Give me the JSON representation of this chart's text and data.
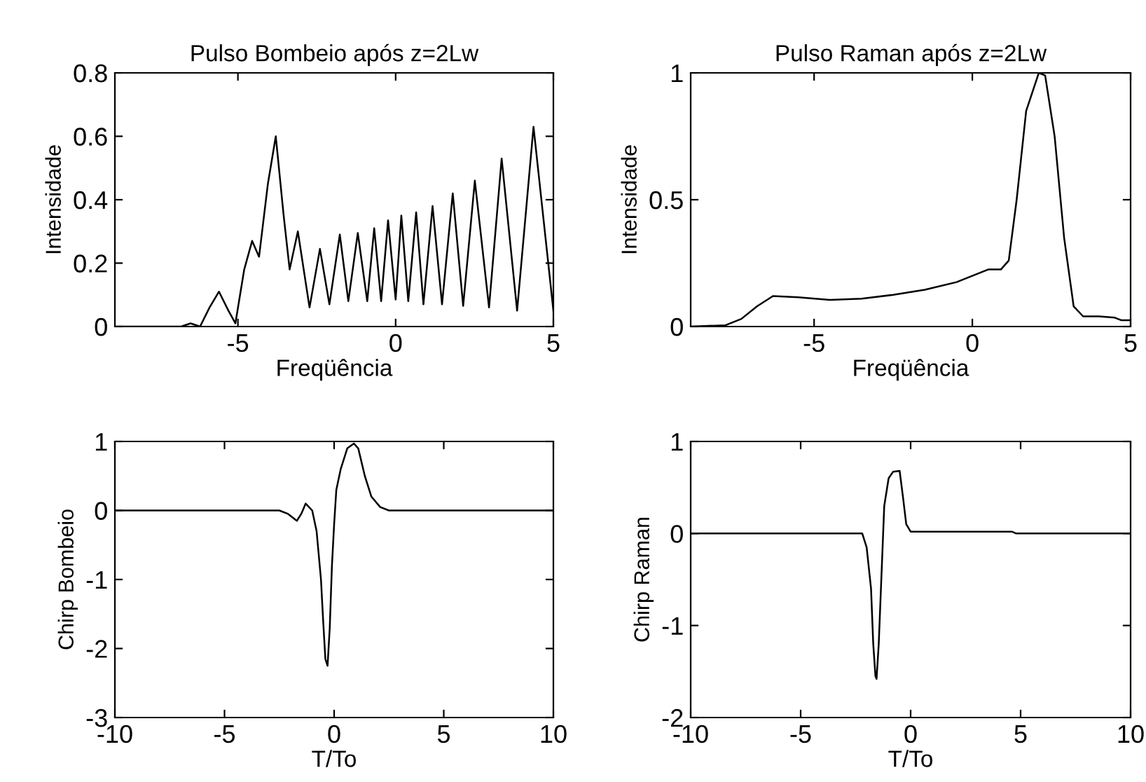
{
  "chart_data": [
    {
      "type": "line",
      "title": "Pulso Bombeio após z=2Lw",
      "xlabel": "Freqüência",
      "ylabel": "Intensidade",
      "xlim": [
        -8.9,
        5
      ],
      "ylim": [
        0,
        0.8
      ],
      "xticks": [
        -5,
        0,
        5
      ],
      "yticks": [
        0,
        0.2,
        0.4,
        0.6,
        0.8
      ],
      "series": [
        {
          "color": "#000000",
          "x": [
            -8.9,
            -6.8,
            -6.5,
            -6.2,
            -5.9,
            -5.6,
            -5.3,
            -5.08,
            -4.8,
            -4.55,
            -4.33,
            -4.05,
            -3.8,
            -3.55,
            -3.36,
            -3.1,
            -2.73,
            -2.4,
            -2.1,
            -1.77,
            -1.5,
            -1.2,
            -0.9,
            -0.68,
            -0.46,
            -0.24,
            0,
            0.18,
            0.4,
            0.65,
            0.88,
            1.17,
            1.47,
            1.81,
            2.14,
            2.51,
            2.96,
            3.36,
            3.85,
            4.37,
            5
          ],
          "values": [
            0,
            0,
            0.01,
            0,
            0.06,
            0.11,
            0.05,
            0.01,
            0.18,
            0.27,
            0.22,
            0.45,
            0.6,
            0.35,
            0.18,
            0.3,
            0.06,
            0.245,
            0.07,
            0.29,
            0.08,
            0.295,
            0.08,
            0.31,
            0.08,
            0.335,
            0.085,
            0.35,
            0.08,
            0.36,
            0.07,
            0.38,
            0.07,
            0.42,
            0.065,
            0.46,
            0.06,
            0.53,
            0.05,
            0.63,
            0.05
          ]
        }
      ]
    },
    {
      "type": "line",
      "title": "Pulso Raman após z=2Lw",
      "xlabel": "Freqüência",
      "ylabel": "Intensidade",
      "xlim": [
        -8.9,
        5
      ],
      "ylim": [
        0,
        1
      ],
      "xticks": [
        -5,
        0,
        5
      ],
      "yticks": [
        0,
        0.5,
        1
      ],
      "series": [
        {
          "color": "#000000",
          "x": [
            -8.9,
            -7.8,
            -7.3,
            -6.8,
            -6.3,
            -5.5,
            -4.5,
            -3.5,
            -2.5,
            -1.5,
            -0.5,
            0,
            0.5,
            0.9,
            1.15,
            1.4,
            1.7,
            2.1,
            2.3,
            2.6,
            2.9,
            3.2,
            3.5,
            4.0,
            4.5,
            4.7,
            5
          ],
          "values": [
            0,
            0.005,
            0.03,
            0.08,
            0.12,
            0.115,
            0.105,
            0.11,
            0.125,
            0.145,
            0.175,
            0.2,
            0.225,
            0.225,
            0.26,
            0.5,
            0.85,
            1.0,
            0.99,
            0.75,
            0.35,
            0.08,
            0.04,
            0.04,
            0.035,
            0.025,
            0.025
          ]
        }
      ]
    },
    {
      "type": "line",
      "xlabel": "T/To",
      "ylabel": "Chirp Bombeio",
      "xlim": [
        -10,
        10
      ],
      "ylim": [
        -3,
        1
      ],
      "xticks": [
        -10,
        -5,
        0,
        5,
        10
      ],
      "yticks": [
        -3,
        -2,
        -1,
        0,
        1
      ],
      "series": [
        {
          "color": "#000000",
          "x": [
            -10,
            -2.5,
            -2.1,
            -1.7,
            -1.5,
            -1.3,
            -1.0,
            -0.8,
            -0.6,
            -0.5,
            -0.4,
            -0.3,
            -0.2,
            -0.1,
            0,
            0.1,
            0.3,
            0.6,
            0.9,
            1.1,
            1.4,
            1.7,
            2.1,
            2.5,
            10
          ],
          "values": [
            0,
            0,
            -0.05,
            -0.15,
            -0.05,
            0.1,
            0,
            -0.3,
            -1.0,
            -1.6,
            -2.15,
            -2.25,
            -1.7,
            -0.8,
            -0.2,
            0.3,
            0.6,
            0.9,
            0.97,
            0.9,
            0.5,
            0.2,
            0.05,
            0,
            0
          ]
        }
      ]
    },
    {
      "type": "line",
      "xlabel": "T/To",
      "ylabel": "Chirp Raman",
      "xlim": [
        -10,
        10
      ],
      "ylim": [
        -2,
        1
      ],
      "xticks": [
        -10,
        -5,
        0,
        5,
        10
      ],
      "yticks": [
        -2,
        -1,
        0,
        1
      ],
      "series": [
        {
          "color": "#000000",
          "x": [
            -10,
            -2.2,
            -2.0,
            -1.8,
            -1.7,
            -1.6,
            -1.55,
            -1.45,
            -1.3,
            -1.2,
            -1.0,
            -0.8,
            -0.5,
            -0.35,
            -0.2,
            0,
            4.6,
            4.8,
            10
          ],
          "values": [
            0,
            0,
            -0.15,
            -0.6,
            -1.2,
            -1.55,
            -1.58,
            -1.2,
            -0.3,
            0.3,
            0.6,
            0.67,
            0.68,
            0.4,
            0.1,
            0.02,
            0.02,
            0,
            0
          ]
        }
      ]
    }
  ]
}
